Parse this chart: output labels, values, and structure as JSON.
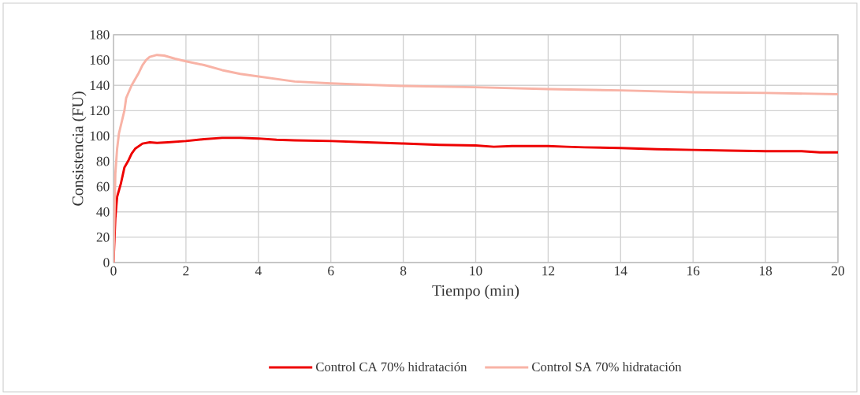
{
  "chart_data": {
    "type": "line",
    "xlabel": "Tiempo (min)",
    "ylabel": "Consistencia (FU)",
    "xlim": [
      0,
      20
    ],
    "xticks": [
      0,
      2,
      4,
      6,
      8,
      10,
      12,
      14,
      16,
      18,
      20
    ],
    "ylim": [
      0,
      180
    ],
    "yticks": [
      0,
      20,
      40,
      60,
      80,
      100,
      120,
      140,
      160,
      180
    ],
    "grid": true,
    "legend": "bottom",
    "marker": "none",
    "line_style": "solid",
    "series": [
      {
        "name": "Control CA 70% hidratación",
        "color": "#ee0000",
        "x": [
          0,
          0.05,
          0.1,
          0.2,
          0.3,
          0.4,
          0.5,
          0.6,
          0.8,
          1.0,
          1.2,
          1.5,
          2,
          2.5,
          3,
          3.5,
          4,
          4.5,
          5,
          6,
          7,
          8,
          9,
          10,
          10.5,
          11,
          12,
          12.5,
          13,
          14,
          15,
          16,
          17,
          18,
          19,
          19.5,
          20
        ],
        "values": [
          0,
          35,
          52,
          62,
          75,
          80,
          86,
          90,
          94,
          95,
          94.5,
          95,
          96,
          97.5,
          98.5,
          98.5,
          98,
          97,
          96.5,
          96,
          95,
          94,
          93,
          92.5,
          91.5,
          92,
          92,
          91.5,
          91,
          90.5,
          89.5,
          89,
          88.5,
          88,
          88,
          87,
          87
        ]
      },
      {
        "name": "Control SA 70% hidratación",
        "color": "#f8b3a6",
        "x": [
          0,
          0.05,
          0.1,
          0.15,
          0.2,
          0.3,
          0.35,
          0.5,
          0.6,
          0.7,
          0.8,
          0.9,
          1.0,
          1.2,
          1.4,
          1.7,
          2,
          2.5,
          3,
          3.5,
          4,
          4.5,
          5,
          6,
          7,
          8,
          10,
          12,
          14,
          16,
          18,
          20
        ],
        "values": [
          0,
          70,
          90,
          102,
          108,
          120,
          130,
          140,
          145,
          150,
          156,
          160,
          162.5,
          164,
          163.5,
          161,
          159,
          156,
          152,
          149,
          147,
          145,
          143,
          141.5,
          140.5,
          139.5,
          138.5,
          137,
          136,
          134.5,
          134,
          133
        ]
      }
    ]
  }
}
